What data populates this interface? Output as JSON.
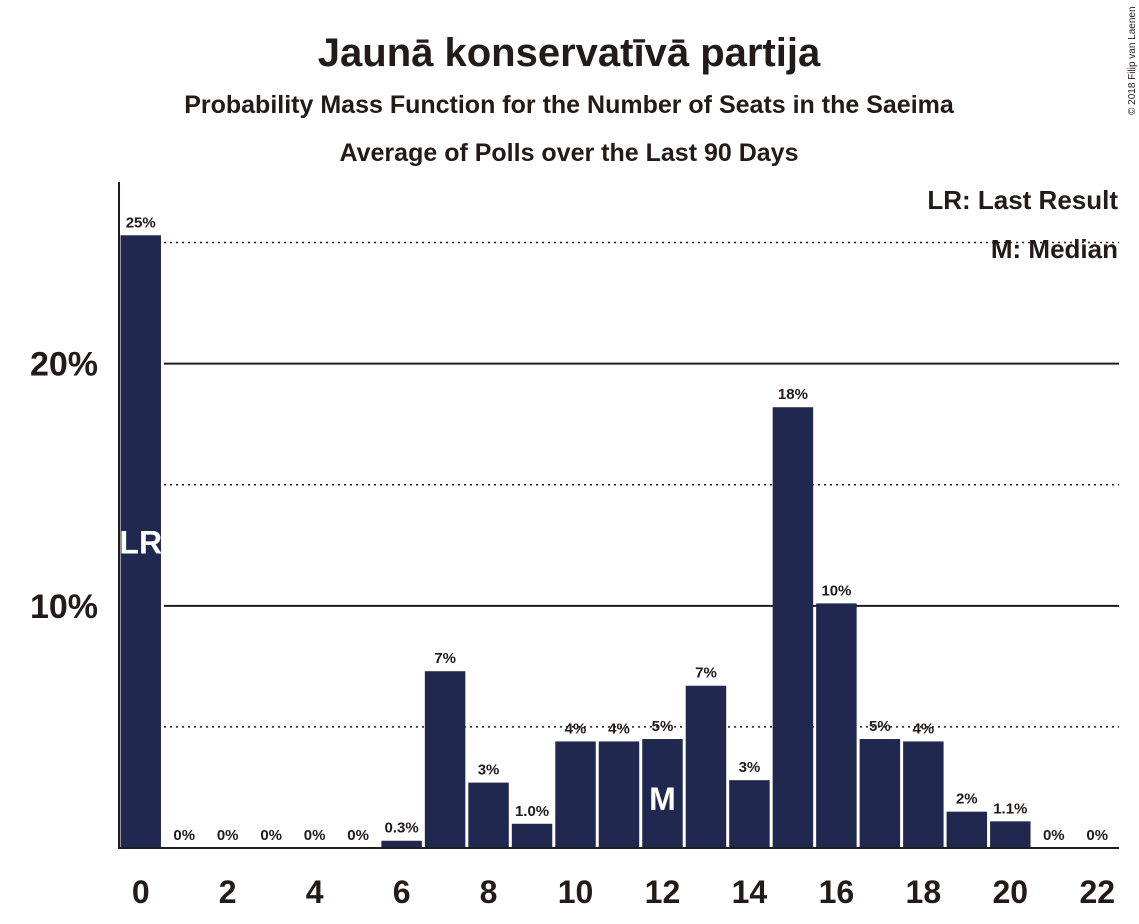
{
  "chart_data": {
    "type": "bar",
    "title": "Jaunā konservatīvā partija",
    "subtitle": "Probability Mass Function for the Number of Seats in the Saeima",
    "subtitle2": "Average of Polls over the Last 90 Days",
    "copyright": "© 2018 Filip van Laenen",
    "legend": {
      "placement": "top-right",
      "items": [
        "LR: Last Result",
        "M: Median"
      ]
    },
    "bar_color": "#21284f",
    "x": [
      0,
      1,
      2,
      3,
      4,
      5,
      6,
      7,
      8,
      9,
      10,
      11,
      12,
      13,
      14,
      15,
      16,
      17,
      18,
      19,
      20,
      21,
      22
    ],
    "values": [
      25.3,
      0,
      0,
      0,
      0,
      0,
      0.3,
      7.3,
      2.7,
      1.0,
      4.4,
      4.4,
      4.5,
      6.7,
      2.8,
      18.2,
      10.1,
      4.5,
      4.4,
      1.5,
      1.1,
      0,
      0
    ],
    "data_labels": [
      "25%",
      "0%",
      "0%",
      "0%",
      "0%",
      "0%",
      "0.3%",
      "7%",
      "3%",
      "1.0%",
      "4%",
      "4%",
      "5%",
      "7%",
      "3%",
      "18%",
      "10%",
      "5%",
      "4%",
      "2%",
      "1.1%",
      "0%",
      "0%"
    ],
    "x_ticks": [
      "0",
      "2",
      "4",
      "6",
      "8",
      "10",
      "12",
      "14",
      "16",
      "18",
      "20",
      "22"
    ],
    "y_ticks": [
      "10%",
      "20%"
    ],
    "ylim": [
      0,
      27.5
    ],
    "solid_gridlines": [
      10,
      20
    ],
    "dotted_gridlines": [
      5,
      15,
      25
    ],
    "markers": [
      {
        "x": 0,
        "label": "LR"
      },
      {
        "x": 12,
        "label": "M"
      }
    ]
  }
}
